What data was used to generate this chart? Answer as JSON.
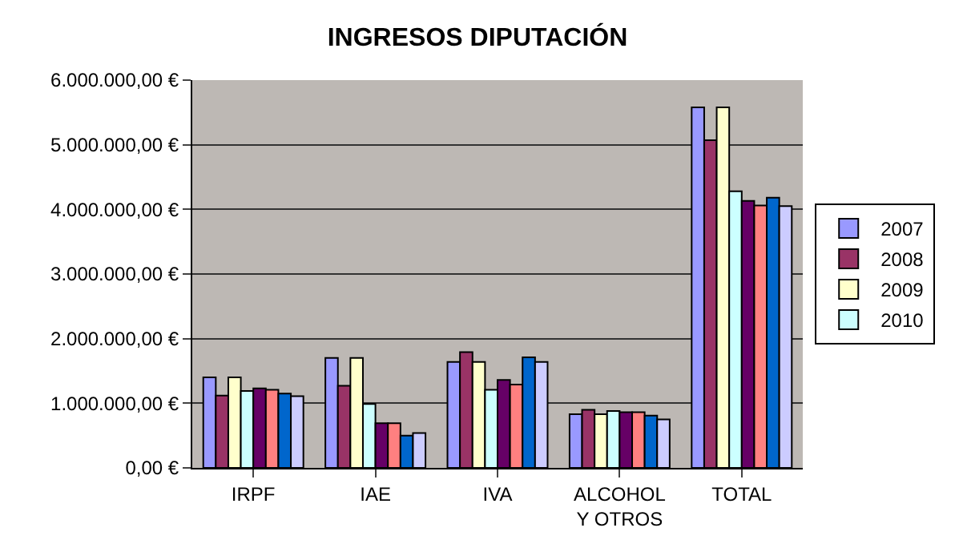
{
  "chart_data": {
    "type": "bar",
    "title": "INGRESOS DIPUTACIÓN",
    "categories": [
      "IRPF",
      "IAE",
      "IVA",
      "ALCOHOL Y OTROS",
      "TOTAL"
    ],
    "series": [
      {
        "name": "2007",
        "color": "#9999ff",
        "values": [
          1400000,
          1700000,
          1640000,
          830000,
          5580000
        ]
      },
      {
        "name": "2008",
        "color": "#993366",
        "values": [
          1120000,
          1270000,
          1790000,
          900000,
          5070000
        ]
      },
      {
        "name": "2009",
        "color": "#ffffcc",
        "values": [
          1400000,
          1700000,
          1640000,
          830000,
          5580000
        ]
      },
      {
        "name": "2010",
        "color": "#ccffff",
        "values": [
          1190000,
          990000,
          1210000,
          880000,
          4280000
        ]
      },
      {
        "color": "#660066",
        "values": [
          1230000,
          690000,
          1360000,
          860000,
          4130000
        ]
      },
      {
        "color": "#ff8080",
        "values": [
          1210000,
          690000,
          1290000,
          860000,
          4060000
        ]
      },
      {
        "color": "#0066cc",
        "values": [
          1150000,
          500000,
          1710000,
          810000,
          4180000
        ]
      },
      {
        "color": "#ccccff",
        "values": [
          1110000,
          540000,
          1640000,
          750000,
          4050000
        ]
      }
    ],
    "ylim": [
      0,
      6000000
    ],
    "yticks": [
      {
        "value": 0,
        "label": "0,00 €"
      },
      {
        "value": 1000000,
        "label": "1.000.000,00 €"
      },
      {
        "value": 2000000,
        "label": "2.000.000,00 €"
      },
      {
        "value": 3000000,
        "label": "3.000.000,00 €"
      },
      {
        "value": 4000000,
        "label": "4.000.000,00 €"
      },
      {
        "value": 5000000,
        "label": "5.000.000,00 €"
      },
      {
        "value": 6000000,
        "label": "6.000.000,00 €"
      }
    ],
    "grid": "y",
    "legend": "right"
  }
}
